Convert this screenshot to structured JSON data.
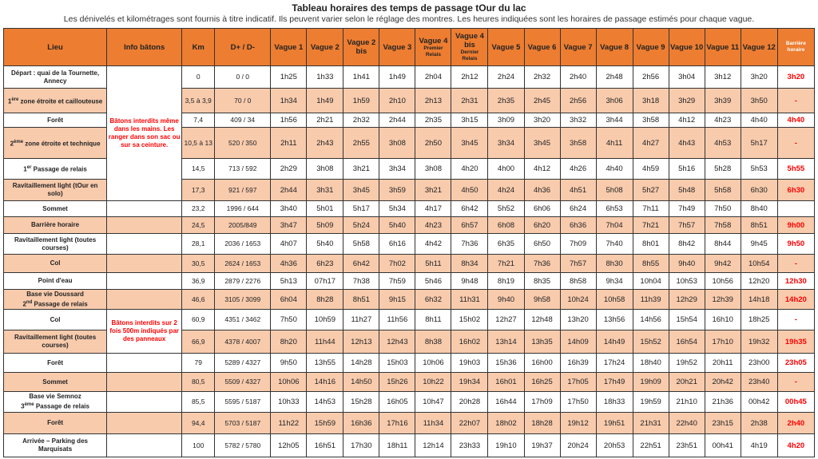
{
  "title": "Tableau horaires des temps de passage tOur du lac",
  "subtitle": "Les dénivelés et kilométrages sont fournis à titre indicatif. Ils peuvent varier selon le réglage des montres. Les heures indiquées sont les horaires de passage estimés pour chaque vague.",
  "colors": {
    "header": "#ED7D31",
    "alt_row": "#F8CBAD",
    "warning_text": "#FF0000"
  },
  "headers": {
    "lieu": "Lieu",
    "info": "Info bâtons",
    "km": "Km",
    "dd": "D+ / D-",
    "vagues": [
      {
        "main": "Vague 1"
      },
      {
        "main": "Vague 2"
      },
      {
        "main": "Vague 2 bis"
      },
      {
        "main": "Vague 3"
      },
      {
        "main": "Vague 4",
        "sub": "Premier Relais"
      },
      {
        "main": "Vague 4 bis",
        "sub": "Dernier Relais"
      },
      {
        "main": "Vague 5"
      },
      {
        "main": "Vague 6"
      },
      {
        "main": "Vague 7"
      },
      {
        "main": "Vague 8"
      },
      {
        "main": "Vague 9"
      },
      {
        "main": "Vague 10"
      },
      {
        "main": "Vague 11"
      },
      {
        "main": "Vague 12"
      }
    ],
    "barriere": "Barrière horaire"
  },
  "info_notes": [
    "Bâtons interdits même dans les mains. Les ranger dans son sac ou sur sa ceinture.",
    "Bâtons interdits sur 2 fois 500m indiqués par des panneaux"
  ],
  "rows": [
    {
      "lieu": "Départ : quai de la Tournette, Annecy",
      "km": "0",
      "dd": "0 / 0",
      "times": [
        "1h25",
        "1h33",
        "1h41",
        "1h49",
        "2h04",
        "2h12",
        "2h24",
        "2h32",
        "2h40",
        "2h48",
        "2h56",
        "3h04",
        "3h12",
        "3h20"
      ],
      "barriere": "3h20"
    },
    {
      "lieu_num": "1",
      "lieu_sup": "ère",
      "lieu": " zone étroite et caillouteuse",
      "km": "3,5 à 3,9",
      "dd": "70 / 0",
      "times": [
        "1h34",
        "1h49",
        "1h59",
        "2h10",
        "2h13",
        "2h31",
        "2h35",
        "2h45",
        "2h56",
        "3h06",
        "3h18",
        "3h29",
        "3h39",
        "3h50"
      ],
      "barriere": "-"
    },
    {
      "lieu": "Forêt",
      "km": "7,4",
      "dd": "409 / 34",
      "times": [
        "1h56",
        "2h21",
        "2h32",
        "2h44",
        "2h35",
        "3h15",
        "3h09",
        "3h20",
        "3h32",
        "3h44",
        "3h58",
        "4h12",
        "4h23",
        "4h40"
      ],
      "barriere": "4h40"
    },
    {
      "lieu_num": "2",
      "lieu_sup": "ème",
      "lieu": " zone étroite et technique",
      "km": "10,5 à 13",
      "dd": "520 / 350",
      "times": [
        "2h11",
        "2h43",
        "2h55",
        "3h08",
        "2h50",
        "3h45",
        "3h34",
        "3h45",
        "3h58",
        "4h11",
        "4h27",
        "4h43",
        "4h53",
        "5h17"
      ],
      "barriere": "-"
    },
    {
      "lieu_num": "1",
      "lieu_sup": "er",
      "lieu": " Passage de relais",
      "km": "14,5",
      "dd": "713 / 592",
      "times": [
        "2h29",
        "3h08",
        "3h21",
        "3h34",
        "3h08",
        "4h20",
        "4h00",
        "4h12",
        "4h26",
        "4h40",
        "4h59",
        "5h16",
        "5h28",
        "5h53"
      ],
      "barriere": "5h55"
    },
    {
      "lieu": "Ravitaillement light (tOur en solo)",
      "km": "17,3",
      "dd": "921 / 597",
      "times": [
        "2h44",
        "3h31",
        "3h45",
        "3h59",
        "3h21",
        "4h50",
        "4h24",
        "4h36",
        "4h51",
        "5h08",
        "5h27",
        "5h48",
        "5h58",
        "6h30"
      ],
      "barriere": "6h30"
    },
    {
      "lieu": "Sommet",
      "km": "23,2",
      "dd": "1996 / 644",
      "times": [
        "3h40",
        "5h01",
        "5h17",
        "5h34",
        "4h17",
        "6h42",
        "5h52",
        "6h06",
        "6h24",
        "6h53",
        "7h11",
        "7h49",
        "7h50",
        "8h40"
      ],
      "barriere": ""
    },
    {
      "lieu": "Barrière horaire",
      "km": "24,5",
      "dd": "2005/849",
      "times": [
        "3h47",
        "5h09",
        "5h24",
        "5h40",
        "4h23",
        "6h57",
        "6h08",
        "6h20",
        "6h36",
        "7h04",
        "7h21",
        "7h57",
        "7h58",
        "8h51"
      ],
      "barriere": "9h00"
    },
    {
      "lieu": "Ravitaillement light (toutes courses)",
      "km": "28,1",
      "dd": "2036 / 1653",
      "times": [
        "4h07",
        "5h40",
        "5h58",
        "6h16",
        "4h42",
        "7h36",
        "6h35",
        "6h50",
        "7h09",
        "7h40",
        "8h01",
        "8h42",
        "8h44",
        "9h45"
      ],
      "barriere": "9h50"
    },
    {
      "lieu": "Col",
      "km": "30,5",
      "dd": "2624 / 1653",
      "times": [
        "4h36",
        "6h23",
        "6h42",
        "7h02",
        "5h11",
        "8h34",
        "7h21",
        "7h36",
        "7h57",
        "8h30",
        "8h55",
        "9h40",
        "9h42",
        "10h54"
      ],
      "barriere": "-"
    },
    {
      "lieu": "Point d'eau",
      "km": "36,9",
      "dd": "2879 / 2276",
      "times": [
        "5h13",
        "07h17",
        "7h38",
        "7h59",
        "5h46",
        "9h48",
        "8h19",
        "8h35",
        "8h58",
        "9h34",
        "10h04",
        "10h53",
        "10h56",
        "12h20"
      ],
      "barriere": "12h30"
    },
    {
      "lieu_pre": "Base vie Doussard",
      "lieu_num": "2",
      "lieu_sup": "nd",
      "lieu": " Passage de relais",
      "km": "46,6",
      "dd": "3105 / 3099",
      "times": [
        "6h04",
        "8h28",
        "8h51",
        "9h15",
        "6h32",
        "11h31",
        "9h40",
        "9h58",
        "10h24",
        "10h58",
        "11h39",
        "12h29",
        "12h39",
        "14h18"
      ],
      "barriere": "14h20"
    },
    {
      "lieu": "Col",
      "km": "60,9",
      "dd": "4351 / 3462",
      "times": [
        "7h50",
        "10h59",
        "11h27",
        "11h56",
        "8h11",
        "15h02",
        "12h27",
        "12h48",
        "13h20",
        "13h56",
        "14h56",
        "15h54",
        "16h10",
        "18h25"
      ],
      "barriere": "-"
    },
    {
      "lieu": "Ravitaillement light (toutes courses)",
      "km": "66,9",
      "dd": "4378 / 4007",
      "times": [
        "8h20",
        "11h44",
        "12h13",
        "12h43",
        "8h38",
        "16h02",
        "13h14",
        "13h35",
        "14h09",
        "14h49",
        "15h52",
        "16h54",
        "17h10",
        "19h32"
      ],
      "barriere": "19h35"
    },
    {
      "lieu": "Forêt",
      "km": "79",
      "dd": "5289 / 4327",
      "times": [
        "9h50",
        "13h55",
        "14h28",
        "15h03",
        "10h06",
        "19h03",
        "15h36",
        "16h00",
        "16h39",
        "17h24",
        "18h40",
        "19h52",
        "20h11",
        "23h00"
      ],
      "barriere": "23h05"
    },
    {
      "lieu": "Sommet",
      "km": "80,5",
      "dd": "5509 / 4327",
      "times": [
        "10h06",
        "14h16",
        "14h50",
        "15h26",
        "10h22",
        "19h34",
        "16h01",
        "16h25",
        "17h05",
        "17h49",
        "19h09",
        "20h21",
        "20h42",
        "23h40"
      ],
      "barriere": "-"
    },
    {
      "lieu_pre": "Base vie Semnoz",
      "lieu_num": "3",
      "lieu_sup": "ème",
      "lieu": " Passage de relais",
      "km": "85,5",
      "dd": "5595 / 5187",
      "times": [
        "10h33",
        "14h53",
        "15h28",
        "16h05",
        "10h47",
        "20h28",
        "16h44",
        "17h09",
        "17h50",
        "18h33",
        "19h59",
        "21h10",
        "21h36",
        "00h42"
      ],
      "barriere": "00h45"
    },
    {
      "lieu": "Forêt",
      "km": "94,4",
      "dd": "5703 / 5187",
      "times": [
        "11h22",
        "15h59",
        "16h36",
        "17h16",
        "11h34",
        "22h07",
        "18h02",
        "18h28",
        "19h12",
        "19h51",
        "21h31",
        "22h40",
        "23h15",
        "2h38"
      ],
      "barriere": "2h40"
    },
    {
      "lieu": "Arrivée – Parking des Marquisats",
      "km": "100",
      "dd": "5782 / 5780",
      "times": [
        "12h05",
        "16h51",
        "17h30",
        "18h11",
        "12h14",
        "23h33",
        "19h10",
        "19h37",
        "20h24",
        "20h53",
        "22h51",
        "23h51",
        "00h41",
        "4h19"
      ],
      "barriere": "4h20"
    }
  ]
}
